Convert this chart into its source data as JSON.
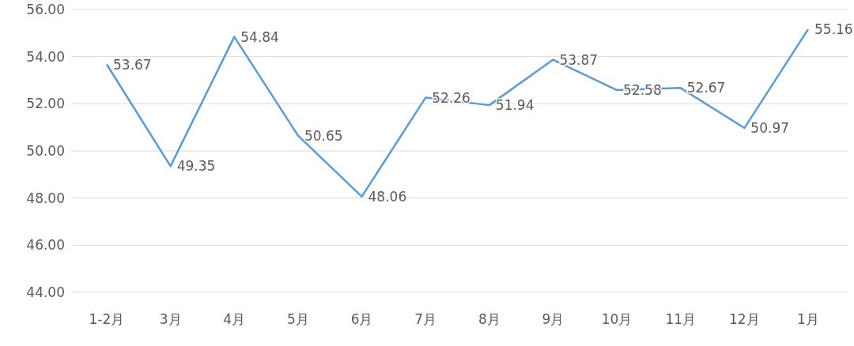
{
  "chart_data": {
    "type": "line",
    "categories": [
      "1-2月",
      "3月",
      "4月",
      "5月",
      "6月",
      "7月",
      "8月",
      "9月",
      "10月",
      "11月",
      "12月",
      "1月"
    ],
    "values": [
      53.67,
      49.35,
      54.84,
      50.65,
      48.06,
      52.26,
      51.94,
      53.87,
      52.58,
      52.67,
      50.97,
      55.16
    ],
    "color": "#5b9bd5",
    "ylim": [
      44,
      56
    ],
    "yticks": [
      {
        "value": 44,
        "label": "44.00"
      },
      {
        "value": 46,
        "label": "46.00"
      },
      {
        "value": 48,
        "label": "48.00"
      },
      {
        "value": 50,
        "label": "50.00"
      },
      {
        "value": 52,
        "label": "52.00"
      },
      {
        "value": 54,
        "label": "54.00"
      },
      {
        "value": 56,
        "label": "56.00"
      }
    ],
    "grid": "y",
    "data_labels": true
  }
}
